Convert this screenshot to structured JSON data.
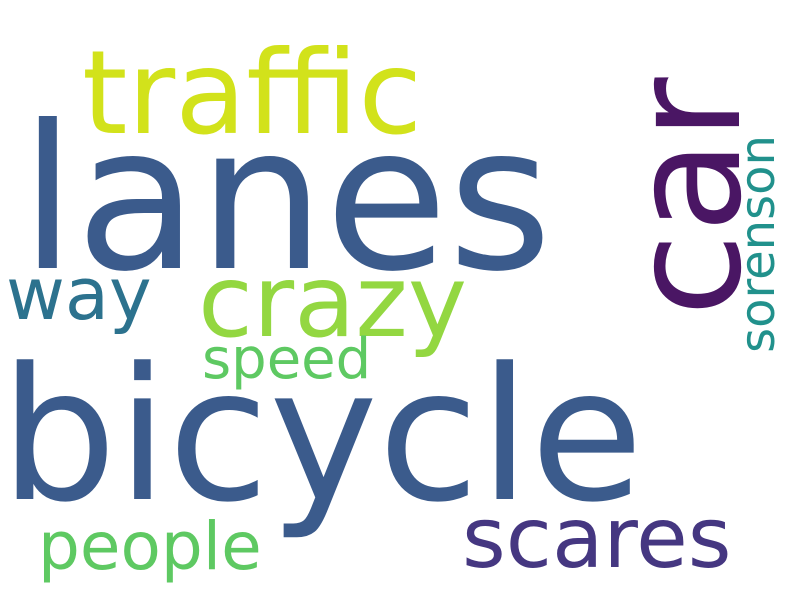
{
  "words": [
    {
      "key": "bicycle",
      "text": "bicycle",
      "color": "#3b5b8c"
    },
    {
      "key": "lanes",
      "text": "lanes",
      "color": "#3b5b8c"
    },
    {
      "key": "car",
      "text": "car",
      "color": "#4a1664"
    },
    {
      "key": "traffic",
      "text": "traffic",
      "color": "#d2e21b"
    },
    {
      "key": "crazy",
      "text": "crazy",
      "color": "#93d741"
    },
    {
      "key": "scares",
      "text": "scares",
      "color": "#453781"
    },
    {
      "key": "people",
      "text": "people",
      "color": "#5ec962"
    },
    {
      "key": "speed",
      "text": "speed",
      "color": "#5ec962"
    },
    {
      "key": "way",
      "text": "way",
      "color": "#2c728e"
    },
    {
      "key": "sorenson",
      "text": "sorenson",
      "color": "#21918c"
    }
  ]
}
